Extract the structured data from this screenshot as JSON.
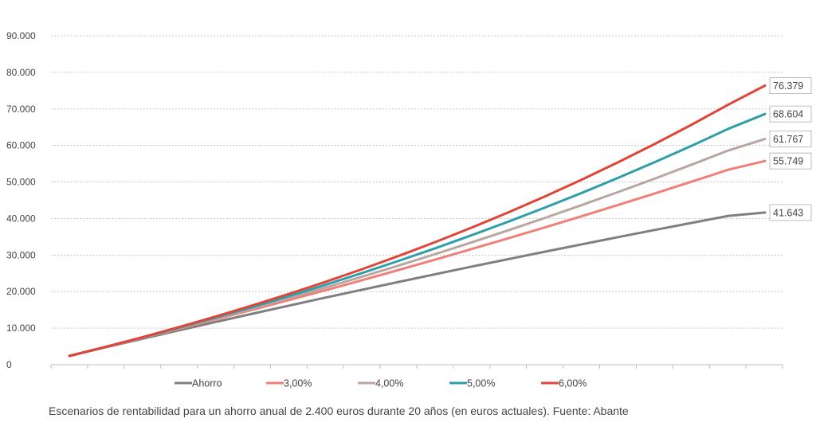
{
  "chart_data": {
    "type": "line",
    "x": [
      1,
      2,
      3,
      4,
      5,
      6,
      7,
      8,
      9,
      10,
      11,
      12,
      13,
      14,
      15,
      16,
      17,
      18,
      19,
      20
    ],
    "ylim": [
      0,
      90000
    ],
    "yticks": [
      0,
      10000,
      20000,
      30000,
      40000,
      50000,
      60000,
      70000,
      80000,
      90000
    ],
    "ytick_labels": [
      "0",
      "10.000",
      "20.000",
      "30.000",
      "40.000",
      "50.000",
      "60.000",
      "70.000",
      "80.000",
      "90.000"
    ],
    "grid": true,
    "legend_position": "bottom",
    "series": [
      {
        "name": "Ahorro",
        "color": "#7f7f7f",
        "values": [
          2400,
          4769,
          7108,
          9417,
          11697,
          13948,
          16170,
          18363,
          20529,
          22667,
          24777,
          26861,
          28918,
          30949,
          32953,
          34932,
          36886,
          38815,
          40719,
          41643
        ],
        "end_label": "41.643"
      },
      {
        "name": "3,00%",
        "color": "#ef8078",
        "values": [
          2400,
          4841,
          7324,
          9850,
          12419,
          15032,
          17690,
          20393,
          23142,
          25939,
          28783,
          31677,
          34619,
          37612,
          40657,
          43754,
          46903,
          50107,
          53365,
          55749
        ],
        "end_label": "55.749"
      },
      {
        "name": "4,00%",
        "color": "#b9a6a2",
        "values": [
          2400,
          4865,
          7397,
          9998,
          12669,
          15413,
          18231,
          21125,
          24098,
          27151,
          30287,
          33509,
          36817,
          40215,
          43706,
          47291,
          50973,
          54756,
          58641,
          61767
        ],
        "end_label": "61.767"
      },
      {
        "name": "5,00%",
        "color": "#2f9ea8",
        "values": [
          2400,
          4889,
          7471,
          10148,
          12924,
          15804,
          18790,
          21887,
          25099,
          28430,
          31885,
          35468,
          39184,
          43038,
          47035,
          51180,
          55479,
          59938,
          64562,
          68604
        ],
        "end_label": "68.604"
      },
      {
        "name": "6,00%",
        "color": "#e0453a",
        "values": [
          2400,
          4913,
          7545,
          10300,
          13185,
          16206,
          19369,
          22681,
          26149,
          29780,
          33582,
          37563,
          41732,
          46096,
          50666,
          55452,
          60463,
          65709,
          71203,
          76379
        ],
        "end_label": "76.379"
      }
    ]
  },
  "caption": "Escenarios de rentabilidad para un ahorro anual de 2.400 euros durante 20 años (en euros actuales). Fuente: Abante"
}
